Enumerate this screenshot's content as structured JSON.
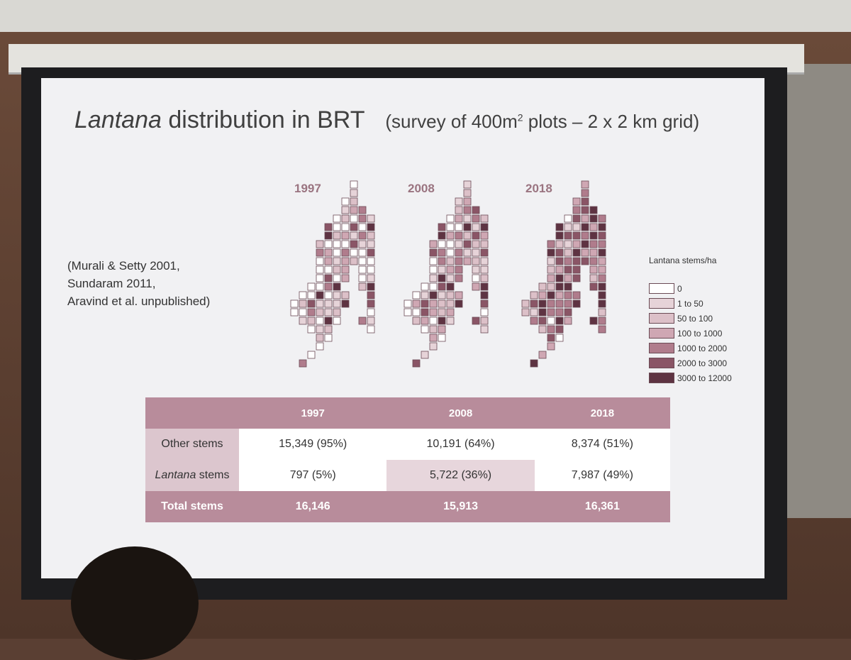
{
  "slide": {
    "title": {
      "italic": "Lantana",
      "text": " distribution in BRT"
    },
    "subtitle": {
      "before": "(survey of 400m",
      "sup": "2",
      "after": " plots – 2 x 2 km grid)"
    },
    "citation": [
      "(Murali & Setty 2001,",
      "Sundaram 2011,",
      "Aravind et al. unpublished)"
    ],
    "maps": [
      "1997",
      "2008",
      "2018"
    ],
    "legend": {
      "title": "Lantana stems/ha",
      "items": [
        {
          "label": "0",
          "color": "#ffffff"
        },
        {
          "label": "1 to 50",
          "color": "#e6d3d8"
        },
        {
          "label": "50 to 100",
          "color": "#dcc0c8"
        },
        {
          "label": "100 to 1000",
          "color": "#cfa7b3"
        },
        {
          "label": "1000 to 2000",
          "color": "#b07c8c"
        },
        {
          "label": "2000 to 3000",
          "color": "#8a5566"
        },
        {
          "label": "3000 to 12000",
          "color": "#5e3342"
        }
      ]
    },
    "table": {
      "columns": [
        "1997",
        "2008",
        "2018"
      ],
      "rows": [
        {
          "label": {
            "text": "Other stems"
          },
          "cells": [
            "15,349 (95%)",
            "10,191 (64%)",
            "8,374 (51%)"
          ]
        },
        {
          "label": {
            "italic": "Lantana",
            "text": " stems"
          },
          "cells": [
            "797 (5%)",
            "5,722 (36%)",
            "7,987 (49%)"
          ]
        },
        {
          "label": {
            "text": "Total stems"
          },
          "cells": [
            "16,146",
            "15,913",
            "16,361"
          ]
        }
      ]
    }
  }
}
